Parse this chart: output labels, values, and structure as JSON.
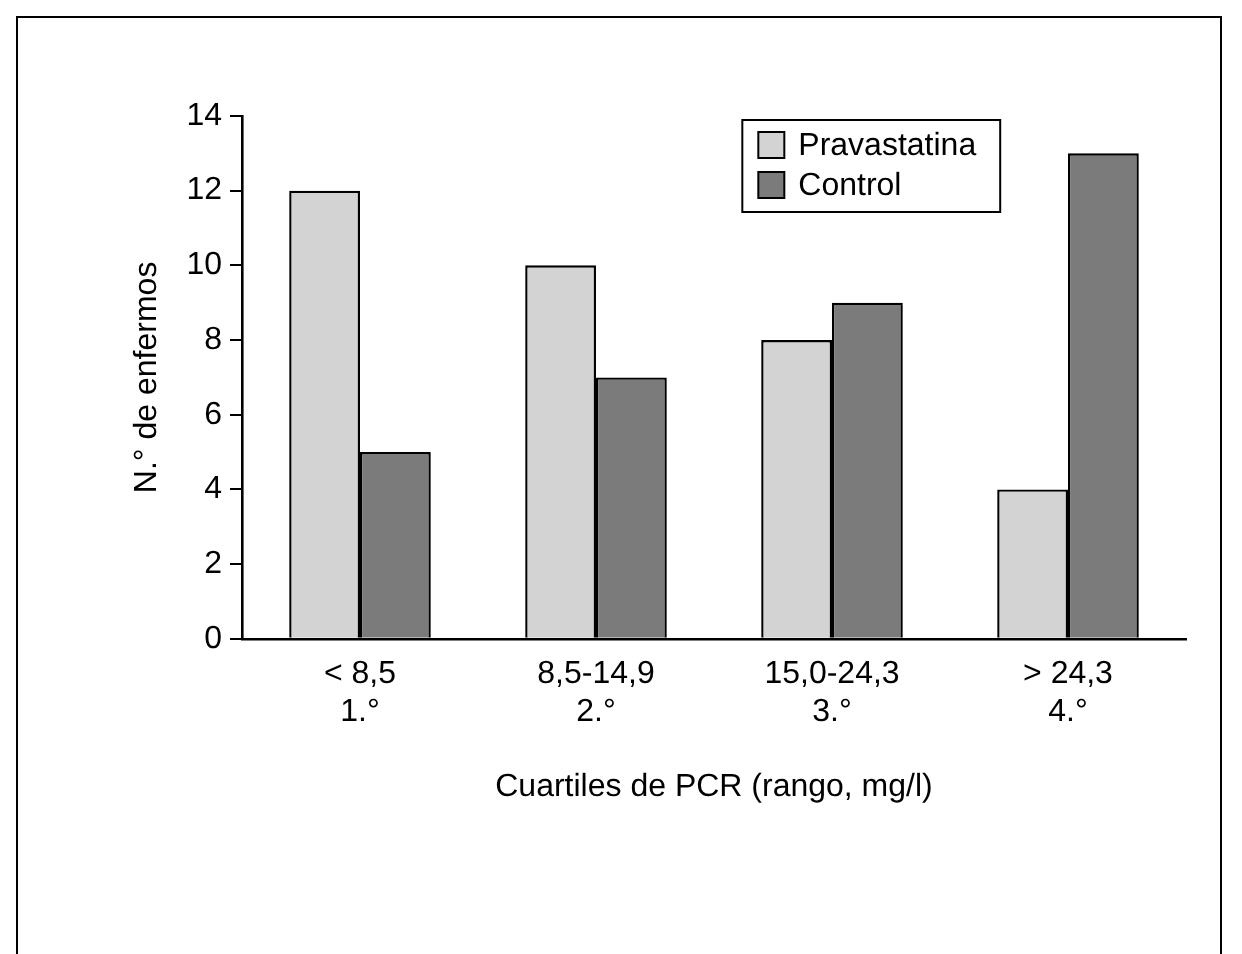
{
  "chart_data": {
    "type": "bar",
    "xlabel": "Cuartiles de PCR (rango, mg/l)",
    "ylabel": "N.° de enfermos",
    "categories": [
      "< 8,5\n1.°",
      "8,5-14,9\n2.°",
      "15,0-24,3\n3.°",
      "> 24,3\n4.°"
    ],
    "series": [
      {
        "name": "Pravastatina",
        "color": "#d3d3d3",
        "values": [
          12,
          10,
          8,
          4
        ]
      },
      {
        "name": "Control",
        "color": "#7b7b7b",
        "values": [
          5,
          7,
          9,
          13
        ]
      }
    ],
    "ylim": [
      0,
      14
    ],
    "yticks": [
      0,
      2,
      4,
      6,
      8,
      10,
      12,
      14
    ],
    "grid": false,
    "legend": "top right"
  }
}
